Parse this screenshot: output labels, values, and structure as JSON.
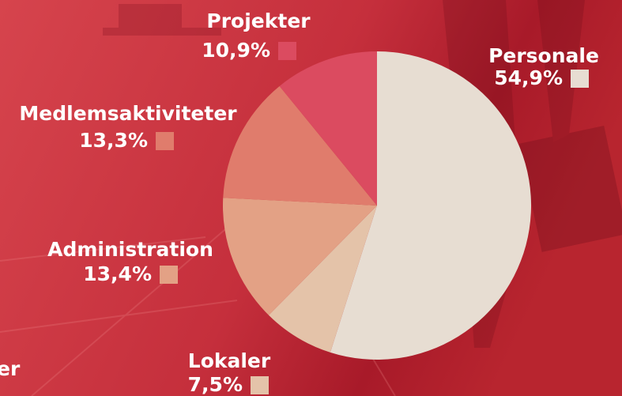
{
  "chart_data": {
    "type": "pie",
    "categories": [
      "Personale",
      "Lokaler",
      "Administration",
      "Medlemsaktiviteter",
      "Projekter"
    ],
    "values": [
      54.9,
      7.5,
      13.4,
      13.3,
      10.9
    ],
    "value_labels": [
      "54,9%",
      "7,5%",
      "13,4%",
      "13,3%",
      "10,9%"
    ],
    "colors": [
      "#e7ddd2",
      "#e4c3a9",
      "#e3a185",
      "#e07c6c",
      "#db4b60"
    ],
    "annotations": [
      "er"
    ]
  }
}
